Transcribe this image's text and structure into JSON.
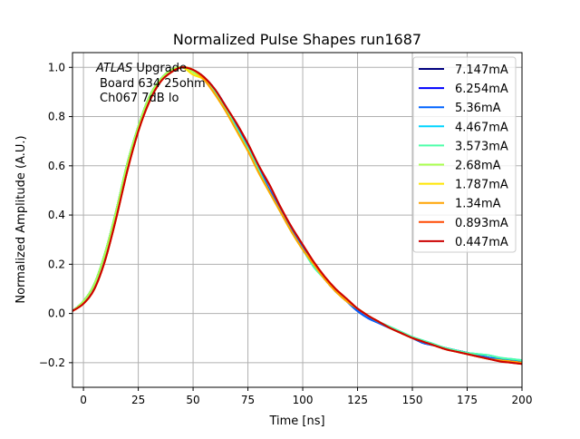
{
  "chart_data": {
    "type": "line",
    "title": "Normalized Pulse Shapes run1687",
    "xlabel": "Time [ns]",
    "ylabel": "Normalized Amplitude (A.U.)",
    "xlim": [
      -5,
      200
    ],
    "ylim": [
      -0.3,
      1.06
    ],
    "xticks": [
      0,
      25,
      50,
      75,
      100,
      125,
      150,
      175,
      200
    ],
    "yticks": [
      -0.2,
      0.0,
      0.2,
      0.4,
      0.6,
      0.8,
      1.0
    ],
    "xtick_labels": [
      "0",
      "25",
      "50",
      "75",
      "100",
      "125",
      "150",
      "175",
      "200"
    ],
    "ytick_labels": [
      "−0.2",
      "0.0",
      "0.2",
      "0.4",
      "0.6",
      "0.8",
      "1.0"
    ],
    "grid": true,
    "legend_position": "top-right",
    "annotation": {
      "line1_italic": "ATLAS",
      "line1_rest": " Upgrade",
      "line2": "Board 634 25ohm",
      "line3": "Ch067 7dB lo"
    },
    "x": [
      -5,
      0,
      5,
      10,
      15,
      20,
      25,
      30,
      35,
      40,
      45,
      50,
      55,
      60,
      65,
      70,
      75,
      80,
      85,
      90,
      95,
      100,
      105,
      110,
      115,
      120,
      125,
      130,
      135,
      140,
      145,
      150,
      155,
      160,
      165,
      170,
      175,
      180,
      185,
      190,
      195,
      200
    ],
    "series": [
      {
        "name": "7.147mA",
        "color": "#00007f",
        "values": [
          0.01,
          0.05,
          0.12,
          0.25,
          0.42,
          0.61,
          0.76,
          0.88,
          0.95,
          0.99,
          1.0,
          0.99,
          0.96,
          0.91,
          0.84,
          0.76,
          0.68,
          0.59,
          0.5,
          0.42,
          0.34,
          0.27,
          0.2,
          0.14,
          0.09,
          0.05,
          0.01,
          -0.02,
          -0.04,
          -0.06,
          -0.08,
          -0.1,
          -0.12,
          -0.13,
          -0.14,
          -0.15,
          -0.16,
          -0.17,
          -0.18,
          -0.185,
          -0.19,
          -0.195
        ]
      },
      {
        "name": "6.254mA",
        "color": "#0000ff",
        "values": [
          0.01,
          0.05,
          0.12,
          0.25,
          0.42,
          0.61,
          0.76,
          0.88,
          0.95,
          0.99,
          1.0,
          0.99,
          0.96,
          0.91,
          0.84,
          0.76,
          0.68,
          0.59,
          0.5,
          0.42,
          0.34,
          0.27,
          0.2,
          0.14,
          0.09,
          0.05,
          0.01,
          -0.02,
          -0.04,
          -0.06,
          -0.08,
          -0.1,
          -0.12,
          -0.13,
          -0.14,
          -0.15,
          -0.16,
          -0.17,
          -0.18,
          -0.185,
          -0.19,
          -0.195
        ]
      },
      {
        "name": "5.36mA",
        "color": "#0063ff",
        "values": [
          0.01,
          0.05,
          0.12,
          0.25,
          0.42,
          0.61,
          0.76,
          0.88,
          0.95,
          0.99,
          1.0,
          0.99,
          0.96,
          0.91,
          0.84,
          0.76,
          0.68,
          0.59,
          0.5,
          0.42,
          0.34,
          0.27,
          0.2,
          0.14,
          0.09,
          0.05,
          0.01,
          -0.02,
          -0.04,
          -0.06,
          -0.08,
          -0.1,
          -0.12,
          -0.13,
          -0.14,
          -0.15,
          -0.16,
          -0.17,
          -0.18,
          -0.185,
          -0.19,
          -0.195
        ]
      },
      {
        "name": "4.467mA",
        "color": "#00d4ff",
        "values": [
          0.01,
          0.05,
          0.12,
          0.25,
          0.42,
          0.61,
          0.76,
          0.88,
          0.95,
          0.99,
          1.0,
          0.99,
          0.95,
          0.9,
          0.83,
          0.75,
          0.67,
          0.58,
          0.49,
          0.41,
          0.33,
          0.26,
          0.19,
          0.14,
          0.09,
          0.05,
          0.02,
          -0.01,
          -0.035,
          -0.055,
          -0.075,
          -0.095,
          -0.11,
          -0.125,
          -0.14,
          -0.15,
          -0.16,
          -0.165,
          -0.17,
          -0.18,
          -0.185,
          -0.19
        ]
      },
      {
        "name": "3.573mA",
        "color": "#4effa9",
        "values": [
          0.01,
          0.05,
          0.12,
          0.25,
          0.42,
          0.61,
          0.76,
          0.88,
          0.95,
          0.99,
          1.0,
          0.99,
          0.95,
          0.9,
          0.83,
          0.75,
          0.67,
          0.58,
          0.49,
          0.41,
          0.33,
          0.26,
          0.19,
          0.14,
          0.09,
          0.05,
          0.02,
          -0.01,
          -0.035,
          -0.055,
          -0.075,
          -0.095,
          -0.11,
          -0.125,
          -0.14,
          -0.15,
          -0.16,
          -0.165,
          -0.17,
          -0.18,
          -0.185,
          -0.19
        ]
      },
      {
        "name": "2.68mA",
        "color": "#a9ff4e",
        "values": [
          0.01,
          0.05,
          0.12,
          0.25,
          0.42,
          0.61,
          0.76,
          0.88,
          0.95,
          0.99,
          1.0,
          0.98,
          0.95,
          0.89,
          0.82,
          0.74,
          0.66,
          0.57,
          0.49,
          0.41,
          0.33,
          0.26,
          0.2,
          0.14,
          0.09,
          0.05,
          0.02,
          -0.01,
          -0.035,
          -0.06,
          -0.08,
          -0.1,
          -0.115,
          -0.13,
          -0.145,
          -0.155,
          -0.165,
          -0.175,
          -0.185,
          -0.19,
          -0.195,
          -0.2
        ]
      },
      {
        "name": "1.787mA",
        "color": "#ffe500",
        "values": [
          0.01,
          0.04,
          0.1,
          0.22,
          0.39,
          0.58,
          0.74,
          0.86,
          0.94,
          0.98,
          1.0,
          0.97,
          0.95,
          0.89,
          0.82,
          0.74,
          0.66,
          0.57,
          0.49,
          0.41,
          0.33,
          0.26,
          0.2,
          0.14,
          0.09,
          0.05,
          0.02,
          -0.01,
          -0.035,
          -0.06,
          -0.08,
          -0.1,
          -0.115,
          -0.13,
          -0.145,
          -0.155,
          -0.165,
          -0.175,
          -0.185,
          -0.19,
          -0.195,
          -0.2
        ]
      },
      {
        "name": "1.34mA",
        "color": "#ffa300",
        "values": [
          0.01,
          0.04,
          0.1,
          0.22,
          0.39,
          0.58,
          0.74,
          0.86,
          0.94,
          0.98,
          1.0,
          0.99,
          0.95,
          0.89,
          0.82,
          0.74,
          0.66,
          0.57,
          0.49,
          0.41,
          0.33,
          0.26,
          0.2,
          0.14,
          0.09,
          0.05,
          0.02,
          -0.01,
          -0.035,
          -0.06,
          -0.08,
          -0.1,
          -0.115,
          -0.13,
          -0.145,
          -0.155,
          -0.165,
          -0.175,
          -0.185,
          -0.19,
          -0.195,
          -0.2
        ]
      },
      {
        "name": "0.893mA",
        "color": "#ff4800",
        "values": [
          0.01,
          0.04,
          0.1,
          0.22,
          0.39,
          0.58,
          0.74,
          0.86,
          0.94,
          0.98,
          1.0,
          0.99,
          0.96,
          0.91,
          0.84,
          0.77,
          0.69,
          0.6,
          0.52,
          0.43,
          0.35,
          0.28,
          0.21,
          0.15,
          0.1,
          0.06,
          0.02,
          -0.01,
          -0.035,
          -0.06,
          -0.08,
          -0.1,
          -0.115,
          -0.13,
          -0.145,
          -0.155,
          -0.165,
          -0.175,
          -0.185,
          -0.195,
          -0.2,
          -0.205
        ]
      },
      {
        "name": "0.447mA",
        "color": "#cc0000",
        "values": [
          0.01,
          0.04,
          0.1,
          0.22,
          0.39,
          0.58,
          0.74,
          0.86,
          0.94,
          0.98,
          1.0,
          0.99,
          0.96,
          0.91,
          0.84,
          0.77,
          0.69,
          0.6,
          0.52,
          0.43,
          0.35,
          0.28,
          0.21,
          0.15,
          0.1,
          0.06,
          0.02,
          -0.01,
          -0.035,
          -0.06,
          -0.08,
          -0.1,
          -0.115,
          -0.13,
          -0.145,
          -0.155,
          -0.165,
          -0.175,
          -0.185,
          -0.195,
          -0.2,
          -0.205
        ]
      }
    ]
  }
}
